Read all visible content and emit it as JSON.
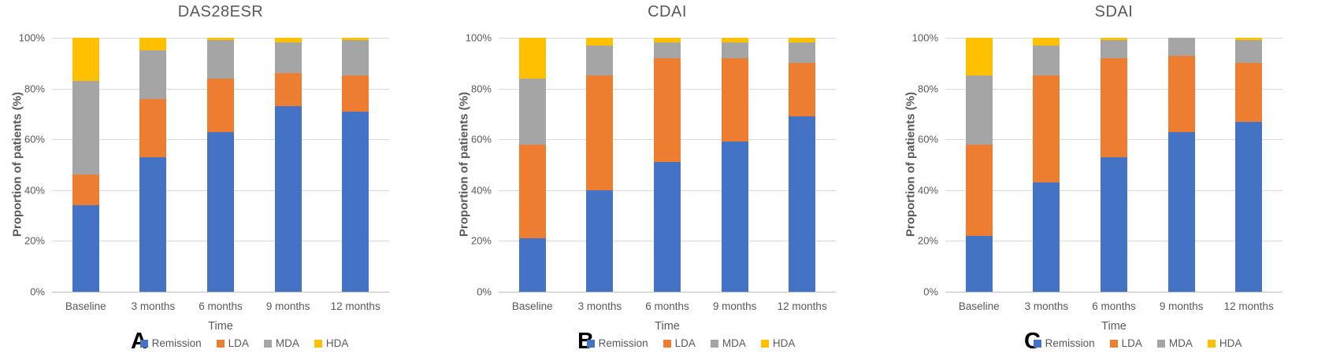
{
  "figure": {
    "y_axis_title": "Proportion of patients (%)",
    "x_axis_title": "Time",
    "legend_labels": [
      "Remission",
      "LDA",
      "MDA",
      "HDA"
    ],
    "colors": {
      "remission": "#4472C4",
      "lda": "#ED7D31",
      "mda": "#A5A5A5",
      "hda": "#FFC000",
      "axis_text": "#595959",
      "gridline": "#D9D9D9",
      "axis_line": "#BFBFBF",
      "panel_letter": "#000000"
    }
  },
  "chart_data": [
    {
      "type": "bar",
      "stacked": true,
      "title": "DAS28ESR",
      "panel_letter": "A",
      "xlabel": "Time",
      "ylabel": "Proportion of patients (%)",
      "ylim": [
        0,
        100
      ],
      "grid": true,
      "legend_position": "bottom",
      "yticks": [
        {
          "value": 0,
          "label": "0%"
        },
        {
          "value": 20,
          "label": "20%"
        },
        {
          "value": 40,
          "label": "40%"
        },
        {
          "value": 60,
          "label": "60%"
        },
        {
          "value": 80,
          "label": "80%"
        },
        {
          "value": 100,
          "label": "100%"
        }
      ],
      "categories": [
        "Baseline",
        "3 months",
        "6 months",
        "9 months",
        "12 months"
      ],
      "series": [
        {
          "name": "Remission",
          "color": "#4472C4",
          "values": [
            34,
            53,
            63,
            73,
            71
          ]
        },
        {
          "name": "LDA",
          "color": "#ED7D31",
          "values": [
            12,
            23,
            21,
            13,
            14
          ]
        },
        {
          "name": "MDA",
          "color": "#A5A5A5",
          "values": [
            37,
            19,
            15,
            12,
            14
          ]
        },
        {
          "name": "HDA",
          "color": "#FFC000",
          "values": [
            17,
            5,
            1,
            2,
            1
          ]
        }
      ]
    },
    {
      "type": "bar",
      "stacked": true,
      "title": "CDAI",
      "panel_letter": "B",
      "xlabel": "Time",
      "ylabel": "Proportion of patients (%)",
      "ylim": [
        0,
        100
      ],
      "grid": true,
      "legend_position": "bottom",
      "yticks": [
        {
          "value": 0,
          "label": "0%"
        },
        {
          "value": 20,
          "label": "20%"
        },
        {
          "value": 40,
          "label": "40%"
        },
        {
          "value": 60,
          "label": "60%"
        },
        {
          "value": 80,
          "label": "80%"
        },
        {
          "value": 100,
          "label": "100%"
        }
      ],
      "categories": [
        "Baseline",
        "3 months",
        "6 months",
        "9 months",
        "12 months"
      ],
      "series": [
        {
          "name": "Remission",
          "color": "#4472C4",
          "values": [
            21,
            40,
            51,
            59,
            69
          ]
        },
        {
          "name": "LDA",
          "color": "#ED7D31",
          "values": [
            37,
            45,
            41,
            33,
            21
          ]
        },
        {
          "name": "MDA",
          "color": "#A5A5A5",
          "values": [
            26,
            12,
            6,
            6,
            8
          ]
        },
        {
          "name": "HDA",
          "color": "#FFC000",
          "values": [
            16,
            3,
            2,
            2,
            2
          ]
        }
      ]
    },
    {
      "type": "bar",
      "stacked": true,
      "title": "SDAI",
      "panel_letter": "C",
      "xlabel": "Time",
      "ylabel": "Proportion of patients (%)",
      "ylim": [
        0,
        100
      ],
      "grid": true,
      "legend_position": "bottom",
      "yticks": [
        {
          "value": 0,
          "label": "0%"
        },
        {
          "value": 20,
          "label": "20%"
        },
        {
          "value": 40,
          "label": "40%"
        },
        {
          "value": 60,
          "label": "60%"
        },
        {
          "value": 80,
          "label": "80%"
        },
        {
          "value": 100,
          "label": "100%"
        }
      ],
      "categories": [
        "Baseline",
        "3 months",
        "6 months",
        "9 months",
        "12 months"
      ],
      "series": [
        {
          "name": "Remission",
          "color": "#4472C4",
          "values": [
            22,
            43,
            53,
            63,
            67
          ]
        },
        {
          "name": "LDA",
          "color": "#ED7D31",
          "values": [
            36,
            42,
            39,
            30,
            23
          ]
        },
        {
          "name": "MDA",
          "color": "#A5A5A5",
          "values": [
            27,
            12,
            7,
            7,
            9
          ]
        },
        {
          "name": "HDA",
          "color": "#FFC000",
          "values": [
            15,
            3,
            1,
            0,
            1
          ]
        }
      ]
    }
  ]
}
